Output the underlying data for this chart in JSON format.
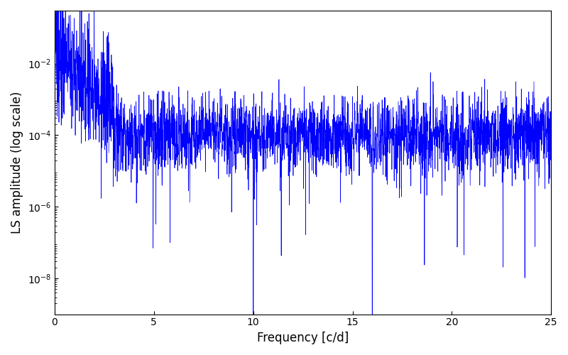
{
  "title": "",
  "xlabel": "Frequency [c/d]",
  "ylabel": "LS amplitude (log scale)",
  "line_color": "#0000ff",
  "xlim": [
    0,
    25
  ],
  "ylim": [
    1e-09,
    0.3
  ],
  "yscale": "log",
  "yticks": [
    1e-08,
    1e-06,
    0.0001,
    0.01
  ],
  "xticks": [
    0,
    5,
    10,
    15,
    20,
    25
  ],
  "figsize": [
    8.0,
    5.0
  ],
  "dpi": 100,
  "freq_max": 25.0,
  "n_points": 3000,
  "seed": 137,
  "line_width": 0.5,
  "background_color": "#ffffff"
}
